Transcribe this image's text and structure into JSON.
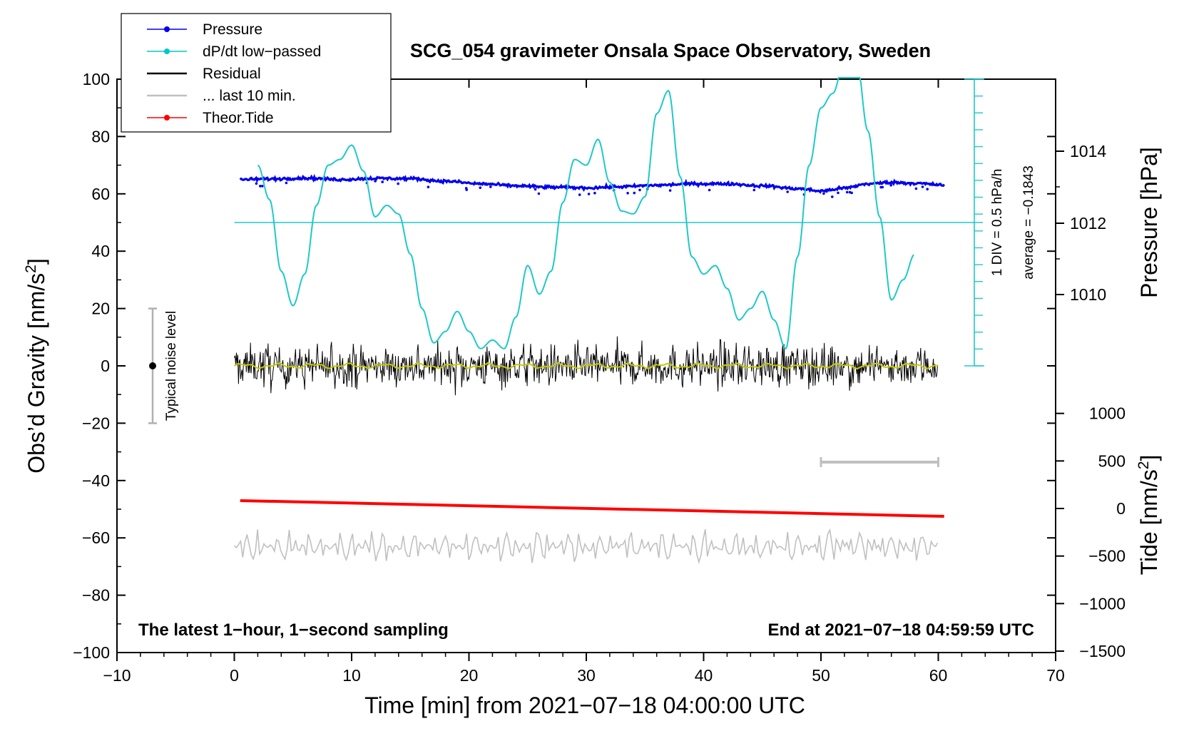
{
  "chart_data": {
    "type": "line",
    "title": "SCG_054 gravimeter Onsala Space Observatory, Sweden",
    "xlabel": "Time [min] from 2021−07−18 04:00:00 UTC",
    "ylabel_left": "Obs’d Gravity [nm/s",
    "ylabel_left_sup": "2",
    "ylabel_left_close": "]",
    "ylabel_right_pressure": "Pressure [hPa]",
    "ylabel_right_tide": "Tide [nm/s",
    "ylabel_right_tide_sup": "2",
    "ylabel_right_tide_close": "]",
    "xlim": [
      -10,
      70
    ],
    "ylim": [
      -100,
      100
    ],
    "x_ticks": [
      "−10",
      "0",
      "10",
      "20",
      "30",
      "40",
      "50",
      "60",
      "70"
    ],
    "y_ticks": [
      "−100",
      "−80",
      "−60",
      "−40",
      "−20",
      "0",
      "20",
      "40",
      "60",
      "80",
      "100"
    ],
    "pressure_ticks": [
      "1010",
      "1012",
      "1014"
    ],
    "tide_ticks": [
      "−1500",
      "−1000",
      "−500",
      "0",
      "500",
      "1000"
    ],
    "annotation_left": "The latest 1−hour, 1−second sampling",
    "annotation_right": "End at 2021−07−18 04:59:59 UTC",
    "noise_label": "Typical noise level",
    "noise_range": [
      -20,
      20
    ],
    "div_label": "1 DIV = 0.5 hPa/h",
    "average_label": "average = −0.1843",
    "legend": [
      {
        "label": "Pressure",
        "color": "#0000ee",
        "marker": true
      },
      {
        "label": "dP/dt low−passed",
        "color": "#00c8c8",
        "marker": true
      },
      {
        "label": "Residual",
        "color": "#000000",
        "marker": false
      },
      {
        "label": "... last 10 min.",
        "color": "#c0c0c0",
        "marker": false
      },
      {
        "label": "Theor.Tide",
        "color": "#ff0000",
        "marker": true
      }
    ],
    "colors": {
      "pressure": "#0000ee",
      "dpdt": "#20c8c8",
      "residual": "#000000",
      "residual_mean": "#c8c800",
      "last10": "#c0c0c0",
      "tide": "#ff0000"
    },
    "last10_bar_minutes": [
      50,
      60
    ],
    "series": [
      {
        "name": "Pressure",
        "unit": "plotted gravity units",
        "x": [
          0.5,
          3,
          6,
          9,
          12,
          15,
          18,
          21,
          24,
          27,
          30,
          33,
          36,
          39,
          42,
          45,
          48,
          50,
          52,
          54,
          56,
          58,
          60,
          60.5
        ],
        "y": [
          65,
          65.2,
          65.5,
          65,
          65.4,
          65.3,
          64.4,
          63.5,
          62.8,
          62.3,
          62.1,
          62.5,
          63,
          63.5,
          63.5,
          62.8,
          61.8,
          61,
          62,
          63.5,
          64,
          63.7,
          63.2,
          63
        ]
      },
      {
        "name": "dP/dt low−passed",
        "unit": "plotted gravity units",
        "x": [
          2,
          3,
          4,
          5,
          6,
          7,
          8,
          9,
          10,
          11,
          12,
          13,
          14,
          15,
          16,
          17,
          18,
          19,
          20,
          21,
          22,
          23,
          24,
          25,
          26,
          27,
          28,
          29,
          30,
          31,
          32,
          33,
          34,
          35,
          36,
          37,
          38,
          39,
          40,
          41,
          42,
          43,
          44,
          45,
          46,
          47,
          48,
          49,
          50,
          51,
          52,
          53,
          54,
          55,
          56,
          57,
          58
        ],
        "y": [
          70,
          58,
          33,
          21,
          32,
          56,
          70,
          72,
          77,
          68,
          52,
          56,
          53,
          39,
          20,
          8,
          12,
          19,
          12,
          6,
          9,
          6,
          17,
          35,
          25,
          33,
          57,
          72,
          70,
          79,
          64,
          54,
          53,
          59,
          88,
          96,
          66,
          38,
          32,
          35,
          27,
          16,
          20,
          26,
          16,
          6,
          38,
          70,
          90,
          95,
          106,
          108,
          82,
          52,
          23,
          30,
          39
        ]
      },
      {
        "name": "Theor.Tide",
        "unit": "plotted gravity units",
        "x": [
          0.5,
          60.5
        ],
        "y": [
          -47,
          -52.5
        ]
      }
    ]
  }
}
